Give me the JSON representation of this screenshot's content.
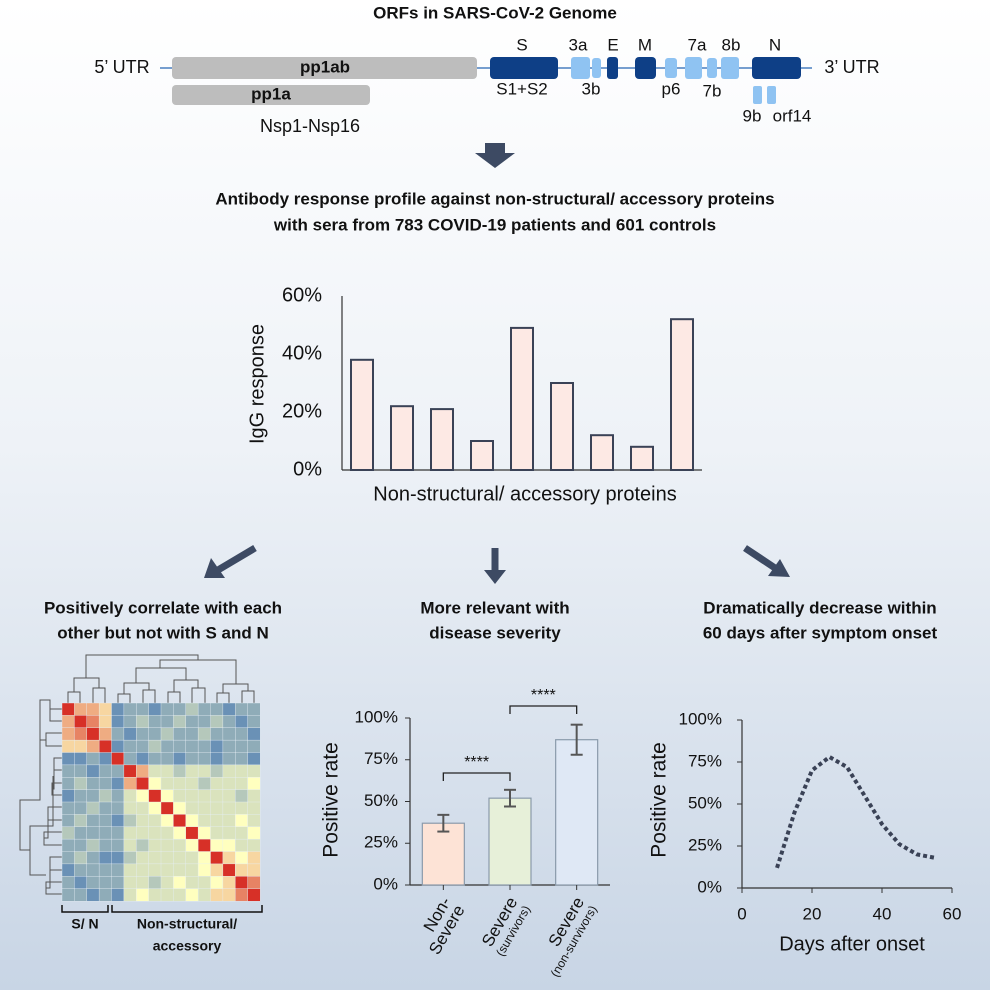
{
  "genome": {
    "title": "ORFs in SARS-CoV-2 Genome",
    "labels": [
      "5’ UTR",
      "pp1ab",
      "pp1a",
      "Nsp1-Nsp16",
      "S",
      "S1+S2",
      "3a",
      "3b",
      "E",
      "M",
      "p6",
      "7a",
      "7b",
      "8b",
      "N",
      "9b",
      "orf14",
      "3’ UTR"
    ]
  },
  "headline": [
    "Antibody response profile against non-structural/ accessory proteins",
    "with sera from 783 COVID-19 patients and 601 controls"
  ],
  "panel_titles": [
    [
      "Positively correlate with each",
      "other but not with S and N"
    ],
    [
      "More relevant with",
      "disease severity"
    ],
    [
      "Dramatically decrease within",
      "60 days after symptom onset"
    ]
  ],
  "chart_data": [
    {
      "type": "bar",
      "ylabel": "IgG response",
      "xlabel": "Non-structural/ accessory proteins",
      "categories": [
        null,
        null,
        null,
        null,
        null,
        null,
        null,
        null,
        null
      ],
      "values": [
        38,
        22,
        21,
        10,
        49,
        30,
        12,
        8,
        52
      ],
      "color": "#fde9e4",
      "edge_color": "#3a4256",
      "ylim": [
        0,
        60
      ],
      "yticks": [
        {
          "value": 0,
          "label": "0%"
        },
        {
          "value": 20,
          "label": "20%"
        },
        {
          "value": 40,
          "label": "40%"
        },
        {
          "value": 60,
          "label": "60%"
        }
      ]
    },
    {
      "type": "heatmap",
      "group_labels": [
        [
          "S/ N"
        ],
        [
          "Non-structural/",
          "accessory"
        ]
      ],
      "zlim": [
        0,
        1
      ],
      "colorscale": [
        "#4575b4",
        "#ffffbf",
        "#d73027"
      ],
      "matrix": [
        [
          1,
          0.7,
          0.7,
          0.6,
          0.1,
          0.2,
          0.2,
          0.1,
          0.2,
          0.2,
          0.3,
          0.2,
          0.2,
          0.1,
          0.2,
          0.2
        ],
        [
          0.7,
          1,
          0.8,
          0.6,
          0.1,
          0.2,
          0.3,
          0.2,
          0.2,
          0.3,
          0.2,
          0.2,
          0.3,
          0.2,
          0.1,
          0.2
        ],
        [
          0.7,
          0.8,
          1,
          0.7,
          0.2,
          0.1,
          0.2,
          0.2,
          0.3,
          0.2,
          0.2,
          0.3,
          0.2,
          0.2,
          0.2,
          0.1
        ],
        [
          0.6,
          0.6,
          0.7,
          1,
          0.1,
          0.2,
          0.2,
          0.3,
          0.2,
          0.2,
          0.2,
          0.2,
          0.1,
          0.2,
          0.2,
          0.2
        ],
        [
          0.1,
          0.1,
          0.2,
          0.1,
          1,
          0.2,
          0.1,
          0.2,
          0.2,
          0.1,
          0.2,
          0.2,
          0.1,
          0.2,
          0.2,
          0.1
        ],
        [
          0.2,
          0.2,
          0.1,
          0.2,
          0.2,
          1,
          0.7,
          0.4,
          0.4,
          0.3,
          0.4,
          0.4,
          0.3,
          0.4,
          0.4,
          0.4
        ],
        [
          0.2,
          0.3,
          0.2,
          0.2,
          0.1,
          0.7,
          1,
          0.5,
          0.4,
          0.4,
          0.4,
          0.3,
          0.4,
          0.4,
          0.4,
          0.5
        ],
        [
          0.1,
          0.2,
          0.2,
          0.3,
          0.2,
          0.4,
          0.5,
          1,
          0.5,
          0.4,
          0.4,
          0.4,
          0.4,
          0.4,
          0.3,
          0.4
        ],
        [
          0.2,
          0.2,
          0.3,
          0.2,
          0.2,
          0.4,
          0.4,
          0.5,
          1,
          0.5,
          0.4,
          0.4,
          0.4,
          0.4,
          0.4,
          0.4
        ],
        [
          0.2,
          0.3,
          0.2,
          0.2,
          0.1,
          0.3,
          0.4,
          0.4,
          0.5,
          1,
          0.5,
          0.4,
          0.4,
          0.4,
          0.5,
          0.4
        ],
        [
          0.3,
          0.2,
          0.2,
          0.2,
          0.2,
          0.4,
          0.4,
          0.4,
          0.4,
          0.5,
          1,
          0.5,
          0.4,
          0.4,
          0.4,
          0.5
        ],
        [
          0.2,
          0.2,
          0.3,
          0.2,
          0.2,
          0.4,
          0.3,
          0.4,
          0.4,
          0.4,
          0.5,
          1,
          0.5,
          0.5,
          0.4,
          0.4
        ],
        [
          0.2,
          0.3,
          0.2,
          0.1,
          0.1,
          0.3,
          0.4,
          0.4,
          0.4,
          0.4,
          0.4,
          0.5,
          1,
          0.6,
          0.5,
          0.6
        ],
        [
          0.1,
          0.2,
          0.2,
          0.2,
          0.2,
          0.4,
          0.4,
          0.4,
          0.4,
          0.4,
          0.4,
          0.5,
          0.6,
          1,
          0.6,
          0.6
        ],
        [
          0.2,
          0.1,
          0.2,
          0.2,
          0.2,
          0.4,
          0.4,
          0.3,
          0.4,
          0.5,
          0.4,
          0.4,
          0.5,
          0.6,
          1,
          0.8
        ],
        [
          0.2,
          0.2,
          0.1,
          0.2,
          0.1,
          0.4,
          0.5,
          0.4,
          0.4,
          0.4,
          0.5,
          0.4,
          0.6,
          0.6,
          0.8,
          1
        ]
      ]
    },
    {
      "type": "errorbar",
      "ylabel": "Positive rate",
      "categories": [
        [
          "Non-",
          "Severe"
        ],
        [
          "Severe",
          "(survivors)"
        ],
        [
          "Severe",
          "(non-survivors)"
        ]
      ],
      "values": [
        37,
        52,
        87
      ],
      "errors": [
        5,
        5,
        9
      ],
      "colors": [
        "#fde3d6",
        "#e7f0d9",
        "#dfe8f5"
      ],
      "edge_color": "#8a9aab",
      "ylim": [
        0,
        100
      ],
      "yticks": [
        {
          "value": 0,
          "label": "0%"
        },
        {
          "value": 25,
          "label": "25%"
        },
        {
          "value": 50,
          "label": "50%"
        },
        {
          "value": 75,
          "label": "75%"
        },
        {
          "value": 100,
          "label": "100%"
        }
      ],
      "annotations": [
        {
          "text": "****",
          "between": [
            0,
            1
          ]
        },
        {
          "text": "****",
          "between": [
            1,
            2
          ]
        }
      ]
    },
    {
      "type": "line",
      "xlabel": "Days after onset",
      "ylabel": "Positive rate",
      "x": [
        10,
        15,
        20,
        25,
        30,
        35,
        40,
        45,
        50,
        55
      ],
      "values": [
        12,
        45,
        70,
        78,
        72,
        55,
        38,
        26,
        20,
        18
      ],
      "color": "#3a4256",
      "dashed": true,
      "xlim": [
        0,
        60
      ],
      "xticks": [
        0,
        20,
        40,
        60
      ],
      "ylim": [
        0,
        100
      ],
      "yticks": [
        {
          "value": 0,
          "label": "0%"
        },
        {
          "value": 25,
          "label": "25%"
        },
        {
          "value": 50,
          "label": "50%"
        },
        {
          "value": 75,
          "label": "75%"
        },
        {
          "value": 100,
          "label": "100%"
        }
      ]
    }
  ]
}
